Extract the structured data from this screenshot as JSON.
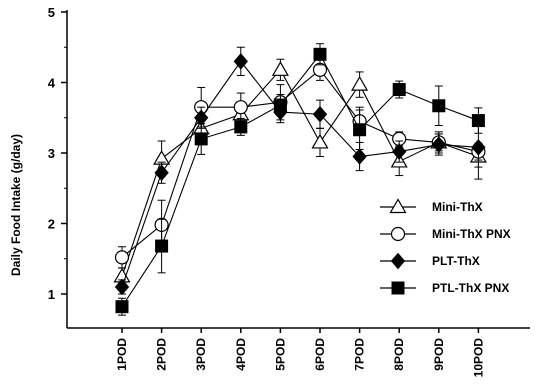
{
  "chart_data": {
    "type": "line",
    "title": "",
    "xlabel": "",
    "ylabel": "Daily Food Intake (g/day)",
    "ylim": [
      0.5,
      5
    ],
    "yticks": [
      1,
      2,
      3,
      4,
      5
    ],
    "categories": [
      "1POD",
      "2POD",
      "3POD",
      "4POD",
      "5POD",
      "6POD",
      "7POD",
      "8POD",
      "9POD",
      "10POD"
    ],
    "grid": false,
    "legend_position": "right",
    "series": [
      {
        "name": "Mini-ThX",
        "marker": "triangle-open",
        "values": [
          1.25,
          2.92,
          3.35,
          3.55,
          4.18,
          3.15,
          3.97,
          2.88,
          3.15,
          2.95
        ],
        "errors": [
          0.12,
          0.25,
          0.2,
          0.1,
          0.15,
          0.2,
          0.18,
          0.2,
          0.15,
          0.15
        ]
      },
      {
        "name": "Mini-ThX PNX",
        "marker": "circle-open",
        "values": [
          1.52,
          1.98,
          3.65,
          3.65,
          3.72,
          4.18,
          3.45,
          3.2,
          3.15,
          3.02
        ],
        "errors": [
          0.15,
          0.35,
          0.28,
          0.2,
          0.25,
          0.15,
          0.2,
          0.1,
          0.12,
          0.12
        ]
      },
      {
        "name": "PLT-ThX",
        "marker": "diamond-filled",
        "values": [
          1.1,
          2.72,
          3.5,
          4.3,
          3.58,
          3.55,
          2.95,
          3.02,
          3.12,
          3.08
        ],
        "errors": [
          0.1,
          0.15,
          0.15,
          0.2,
          0.15,
          0.2,
          0.2,
          0.15,
          0.15,
          0.45
        ]
      },
      {
        "name": "PTL-ThX PNX",
        "marker": "square-filled",
        "values": [
          0.82,
          1.68,
          3.2,
          3.37,
          3.68,
          4.4,
          3.33,
          3.9,
          3.67,
          3.46
        ],
        "errors": [
          0.12,
          0.38,
          0.22,
          0.12,
          0.15,
          0.15,
          0.28,
          0.12,
          0.28,
          0.18
        ]
      }
    ]
  }
}
